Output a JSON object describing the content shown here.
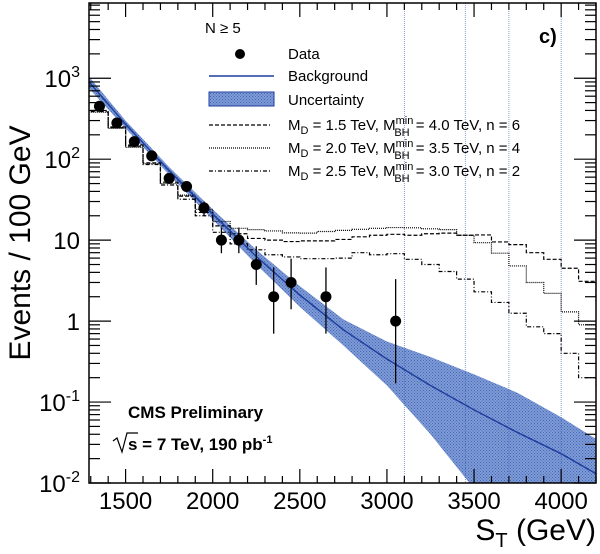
{
  "chart_data": {
    "type": "line",
    "title": "",
    "panel_label": "c)",
    "selection_label": "N ≥ 5",
    "xlabel": "S_T (GeV)",
    "xlabel_main": "S",
    "xlabel_sub": "T",
    "xlabel_unit": " (GeV)",
    "ylabel": "Events / 100 GeV",
    "yscale": "log",
    "xlim": [
      1290,
      4200
    ],
    "ylim": [
      0.01,
      8500
    ],
    "xticks": [
      1500,
      2000,
      2500,
      3000,
      3500,
      4000
    ],
    "yticks": [
      {
        "value": 0.01,
        "base": "10",
        "exp": "-2"
      },
      {
        "value": 0.1,
        "base": "10",
        "exp": "-1"
      },
      {
        "value": 1,
        "base": "1",
        "exp": ""
      },
      {
        "value": 10,
        "base": "10",
        "exp": ""
      },
      {
        "value": 100,
        "base": "10",
        "exp": "2"
      },
      {
        "value": 1000,
        "base": "10",
        "exp": "3"
      }
    ],
    "annotations": {
      "experiment": "CMS Preliminary",
      "energy_prefix": "s = 7 TeV, 190 pb",
      "energy_sup": "-1"
    },
    "legend": {
      "placement": "top-right",
      "entries": [
        {
          "label": "Data",
          "style": "marker"
        },
        {
          "label": "Background",
          "style": "line"
        },
        {
          "label": "Uncertainty",
          "style": "band"
        },
        {
          "label_parts": [
            "M",
            "D",
            " = 1.5 TeV, M",
            "BH",
            "min",
            " = 4.0 TeV, n = 6"
          ],
          "style": "dashed"
        },
        {
          "label_parts": [
            "M",
            "D",
            " = 2.0 TeV, M",
            "BH",
            "min",
            " = 3.5 TeV, n = 4"
          ],
          "style": "dotted"
        },
        {
          "label_parts": [
            "M",
            "D",
            " = 2.5 TeV, M",
            "BH",
            "min",
            " = 3.0 TeV, n = 2"
          ],
          "style": "dashdot"
        }
      ]
    },
    "colors": {
      "data": "#000000",
      "background_line": "#1f3f9f",
      "band_fill": "#6f8fd0",
      "band_edge": "#3355aa",
      "signal": "#000000"
    },
    "data_points": {
      "x": [
        1350,
        1450,
        1550,
        1650,
        1750,
        1850,
        1950,
        2050,
        2150,
        2250,
        2350,
        2450,
        2650,
        3050
      ],
      "y": [
        450,
        280,
        165,
        110,
        58,
        46,
        25,
        10,
        10,
        5,
        2,
        3,
        2,
        1
      ],
      "yerr_low": [
        21,
        17,
        13,
        10,
        7.6,
        6.8,
        5,
        3.1,
        3.1,
        2.2,
        1.3,
        1.6,
        1.3,
        0.83
      ],
      "yerr_high": [
        21,
        17,
        13,
        10,
        7.6,
        6.8,
        5,
        4.3,
        4.3,
        3.4,
        2.6,
        2.9,
        2.6,
        2.3
      ]
    },
    "background": {
      "x": [
        1290,
        1500,
        1750,
        2000,
        2250,
        2500,
        2750,
        3000,
        3250,
        3500,
        3750,
        4000,
        4200
      ],
      "y": [
        900,
        270,
        72,
        21,
        6.3,
        2.1,
        0.78,
        0.34,
        0.16,
        0.08,
        0.042,
        0.023,
        0.013
      ],
      "band_low": [
        750,
        240,
        64,
        18,
        5.0,
        1.5,
        0.5,
        0.16,
        0.04,
        0.0085,
        0.004,
        0.003,
        0.002
      ],
      "band_high": [
        1050,
        300,
        80,
        24,
        7.6,
        2.7,
        1.05,
        0.56,
        0.36,
        0.22,
        0.13,
        0.065,
        0.035
      ]
    },
    "series": [
      {
        "name": "M_D = 1.5 TeV, M_BH^min = 4.0 TeV, n = 6",
        "style": "dashed",
        "bin_edges": [
          1300,
          1400,
          1500,
          1600,
          1700,
          1800,
          1900,
          2000,
          2100,
          2200,
          2300,
          2400,
          2500,
          2600,
          2700,
          2800,
          2900,
          3000,
          3100,
          3200,
          3300,
          3400,
          3500,
          3600,
          3700,
          3800,
          3900,
          4000,
          4100,
          4200
        ],
        "values": [
          400,
          250,
          150,
          90,
          52,
          35,
          22,
          15,
          12,
          10.5,
          10,
          9.6,
          9.8,
          9.8,
          10.2,
          11,
          11.5,
          11.8,
          11.5,
          12,
          12.2,
          11.5,
          11.6,
          9.5,
          8.8,
          7.0,
          5.8,
          4.5,
          3.1,
          1.8
        ]
      },
      {
        "name": "M_D = 2.0 TeV, M_BH^min = 3.5 TeV, n = 4",
        "style": "dotted",
        "bin_edges": [
          1300,
          1400,
          1500,
          1600,
          1700,
          1800,
          1900,
          2000,
          2100,
          2200,
          2300,
          2400,
          2500,
          2600,
          2700,
          2800,
          2900,
          3000,
          3100,
          3200,
          3300,
          3400,
          3500,
          3600,
          3700,
          3800,
          3900,
          4000,
          4100,
          4200
        ],
        "values": [
          380,
          240,
          140,
          88,
          50,
          36,
          24,
          17,
          14,
          13.5,
          13,
          12.3,
          12.2,
          12.8,
          13.2,
          13.6,
          14,
          14.3,
          14.2,
          13.8,
          13.5,
          11.5,
          9.3,
          6.9,
          4.8,
          3.0,
          2.2,
          1.3,
          0.9,
          0.75
        ]
      },
      {
        "name": "M_D = 2.5 TeV, M_BH^min = 3.0 TeV, n = 2",
        "style": "dashdot",
        "bin_edges": [
          1300,
          1400,
          1500,
          1600,
          1700,
          1800,
          1900,
          2000,
          2100,
          2200,
          2300,
          2400,
          2500,
          2600,
          2700,
          2800,
          2900,
          3000,
          3100,
          3200,
          3300,
          3400,
          3500,
          3600,
          3700,
          3800,
          3900,
          4000,
          4100,
          4200
        ],
        "values": [
          390,
          245,
          145,
          86,
          48,
          32,
          20,
          12.5,
          9,
          7.6,
          6.6,
          6.2,
          5.9,
          5.9,
          6.0,
          7.0,
          6.6,
          6.8,
          5.8,
          5.0,
          4.1,
          3.3,
          2.3,
          1.7,
          1.25,
          0.85,
          0.7,
          0.4,
          0.2,
          0.16
        ]
      }
    ]
  }
}
